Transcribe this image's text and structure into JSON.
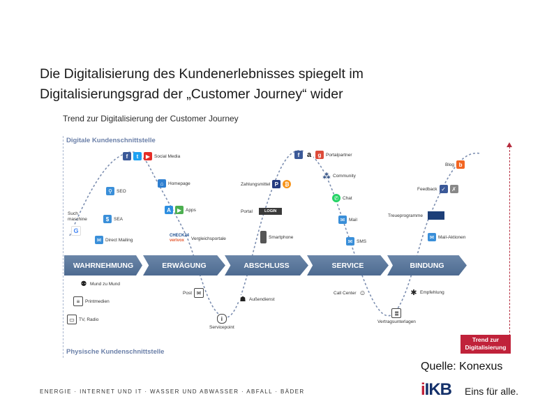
{
  "slide": {
    "title_line1": "Die Digitalisierung des Kundenerlebnisses spiegelt im",
    "title_line2": "Digitalisierungsgrad der „Customer Journey“ wider"
  },
  "diagram": {
    "title": "Trend zur Digitalisierung der Customer Journey",
    "axis_top": "Digitale Kundenschnittstelle",
    "axis_bottom": "Physische Kundenschnittstelle",
    "trend_line1": "Trend zur",
    "trend_line2": "Digitalisierung",
    "phases": [
      "WAHRNEHMUNG",
      "ERWÄGUNG",
      "ABSCHLUSS",
      "SERVICE",
      "BINDUNG"
    ],
    "touchpoints": {
      "social_media": "Social Media",
      "homepage": "Homepage",
      "apps": "Apps",
      "vergleichsportale": "Vergleichsportale",
      "seo": "SEO",
      "suchmaschine_1": "Such",
      "suchmaschine_2": "maschine",
      "sea": "SEA",
      "direct_mailing": "Direct Mailing",
      "zahlungsmittel": "Zahlungsmittel",
      "portal": "Portal",
      "login": "LOGIN",
      "smartphone": "Smartphone",
      "portalpartner": "Portalpartner",
      "community": "Community",
      "chat": "Chat",
      "mail": "Mail",
      "sms": "SMS",
      "blog": "Blog",
      "feedback": "Feedback",
      "treueprogramme": "Treueprogramme",
      "mail_aktionen": "Mail-Aktionen",
      "mund_zu_mund": "Mund zu Mund",
      "printmedien": "Printmedien",
      "tv_radio": "TV, Radio",
      "post": "Post",
      "servicepoint": "Servicepoint",
      "aussendienst": "Außendienst",
      "call_center": "Call Center",
      "vertragsunterlagen": "Vertragsunterlagen",
      "empfehlung": "Empfehlung",
      "check24_1": "CHECK24",
      "check24_2": "verivox"
    }
  },
  "source": "Quelle: Konexus",
  "footer": {
    "divisions": "ENERGIE · INTERNET UND IT · WASSER UND ABWASSER · ABFALL · BÄDER",
    "brand": "IKB",
    "brand_i": "i",
    "tagline": "Eins für alle."
  },
  "colors": {
    "phase_bar": "#5a7599",
    "trend_red": "#c0223a",
    "axis_label": "#6a7fa8",
    "brand_blue": "#14306a"
  }
}
